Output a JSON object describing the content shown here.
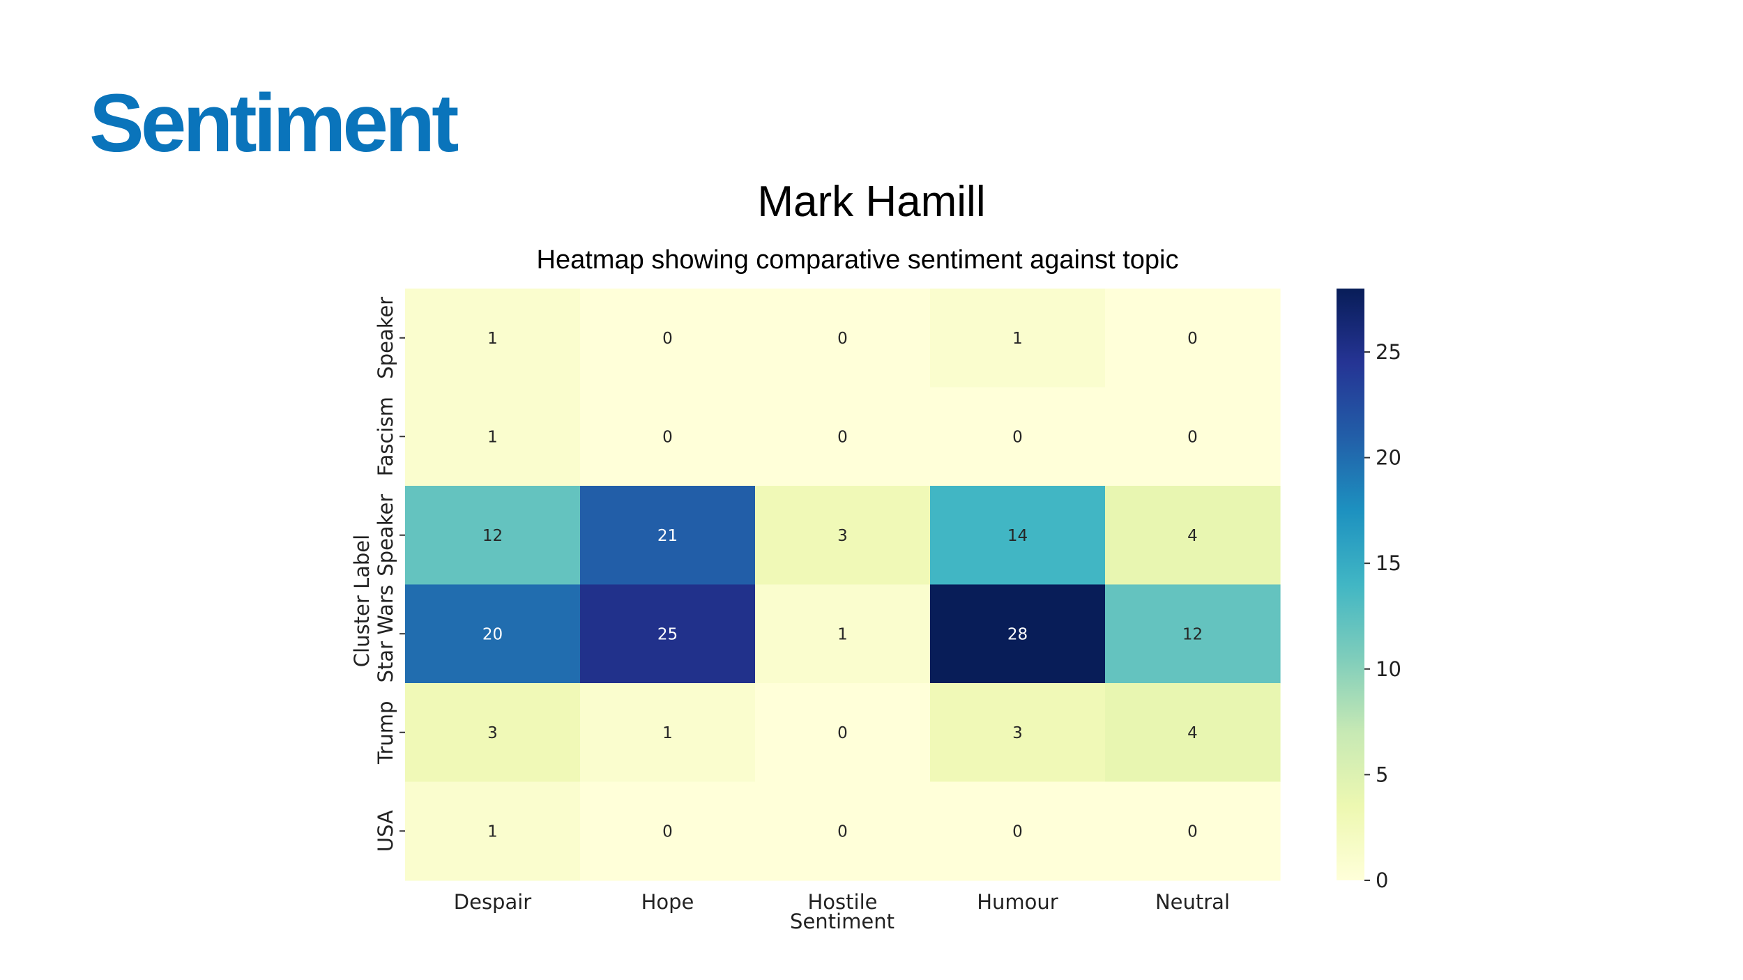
{
  "slide": {
    "heading": "Sentiment",
    "heading_color": "#0a74bb"
  },
  "chart_data": {
    "type": "heatmap",
    "title": "Mark Hamill",
    "subtitle": "Heatmap showing comparative sentiment against topic",
    "xlabel": "Sentiment",
    "ylabel": "Cluster Label",
    "x_categories": [
      "Despair",
      "Hope",
      "Hostile",
      "Humour",
      "Neutral"
    ],
    "y_categories": [
      "Speaker",
      "Fascism",
      "Speaker",
      "Star Wars",
      "Trump",
      "USA"
    ],
    "values": [
      [
        1,
        0,
        0,
        1,
        0
      ],
      [
        1,
        0,
        0,
        0,
        0
      ],
      [
        12,
        21,
        3,
        14,
        4
      ],
      [
        20,
        25,
        1,
        28,
        12
      ],
      [
        3,
        1,
        0,
        3,
        4
      ],
      [
        1,
        0,
        0,
        0,
        0
      ]
    ],
    "colormap": "YlGnBu",
    "colorbar": {
      "range": [
        0,
        28
      ],
      "ticks": [
        0,
        5,
        10,
        15,
        20,
        25
      ]
    },
    "grid": false,
    "cell_annotations": true
  }
}
